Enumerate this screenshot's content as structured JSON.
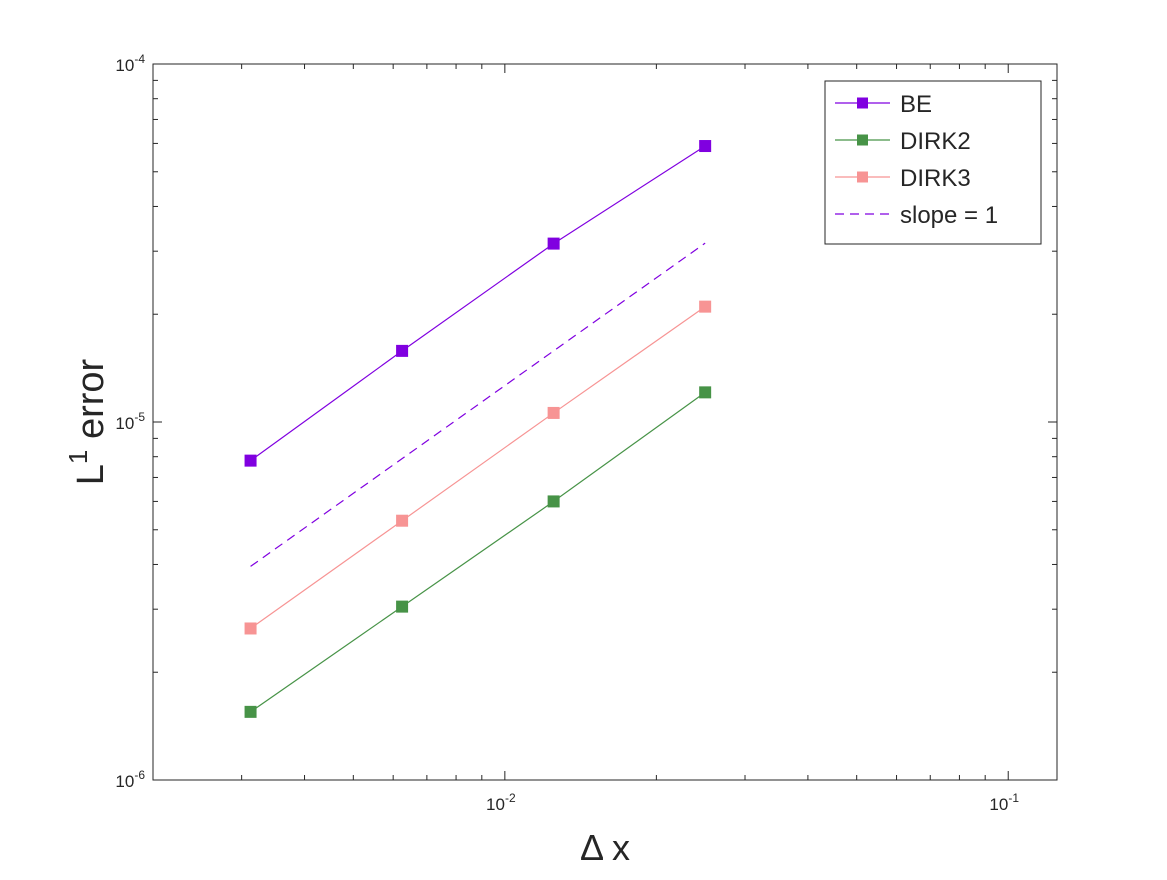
{
  "chart_data": {
    "type": "line",
    "xscale": "log",
    "yscale": "log",
    "xlim": [
      0.002,
      0.125
    ],
    "ylim": [
      1e-06,
      0.0001
    ],
    "x": [
      0.003125,
      0.00625,
      0.0125,
      0.025
    ],
    "xlabel": "Δ x",
    "ylabel": {
      "base": "L",
      "superscript": "1",
      "rest": " error"
    },
    "xticks": [
      {
        "value": 0.01,
        "base": "10",
        "exp": "-2"
      },
      {
        "value": 0.1,
        "base": "10",
        "exp": "-1"
      }
    ],
    "yticks": [
      {
        "value": 1e-06,
        "base": "10",
        "exp": "-6"
      },
      {
        "value": 1e-05,
        "base": "10",
        "exp": "-5"
      },
      {
        "value": 0.0001,
        "base": "10",
        "exp": "-4"
      }
    ],
    "grid": false,
    "legend_position": "top-right",
    "series": [
      {
        "name": "BE",
        "values": [
          7.8e-06,
          1.58e-05,
          3.15e-05,
          5.9e-05
        ],
        "color": "#8000e0",
        "marker": "square",
        "linestyle": "solid"
      },
      {
        "name": "DIRK2",
        "values": [
          1.55e-06,
          3.05e-06,
          6e-06,
          1.21e-05
        ],
        "color": "#479347",
        "marker": "square",
        "linestyle": "solid"
      },
      {
        "name": "DIRK3",
        "values": [
          2.65e-06,
          5.3e-06,
          1.06e-05,
          2.1e-05
        ],
        "color": "#f79494",
        "marker": "square",
        "linestyle": "solid"
      },
      {
        "name": "slope = 1",
        "values": [
          3.95e-06,
          7.9e-06,
          1.58e-05,
          3.16e-05
        ],
        "color": "#8000e0",
        "marker": "none",
        "linestyle": "dashed"
      }
    ]
  }
}
